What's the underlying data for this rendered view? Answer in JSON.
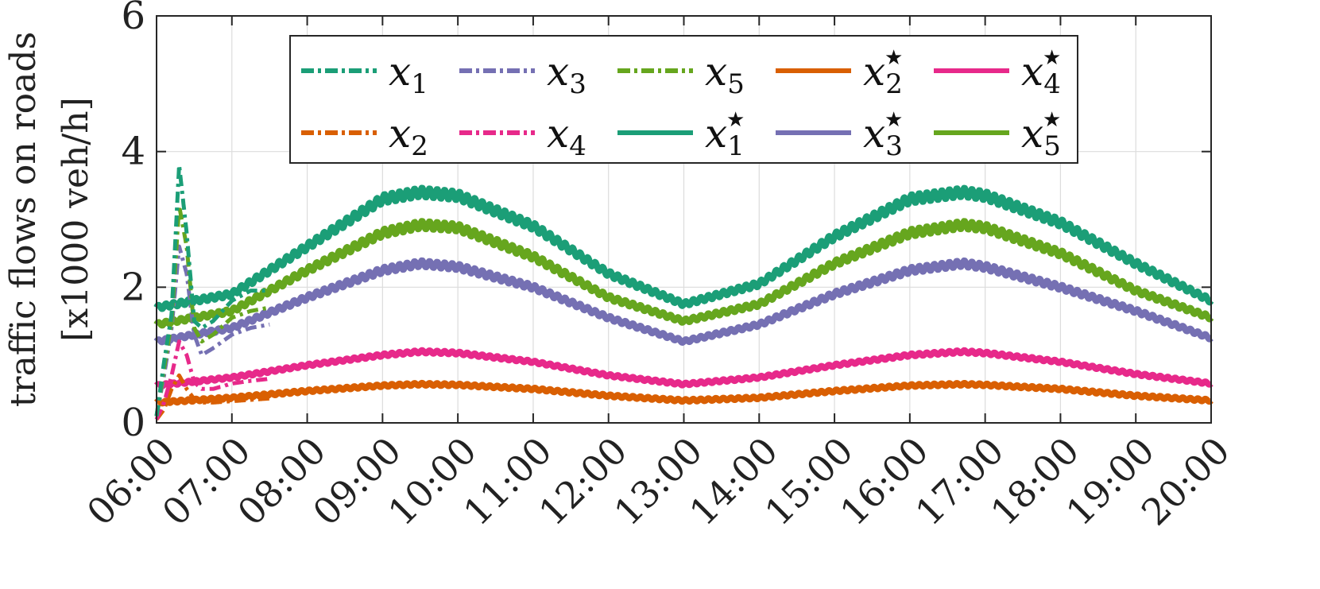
{
  "chart_data": {
    "type": "line",
    "ylabel_line1": "traffic flows on roads",
    "ylabel_line2": "[x1000 veh/h]",
    "x_ticks": [
      "06:00",
      "07:00",
      "08:00",
      "09:00",
      "10:00",
      "11:00",
      "12:00",
      "13:00",
      "14:00",
      "15:00",
      "16:00",
      "17:00",
      "18:00",
      "19:00",
      "20:00"
    ],
    "y_ticks": [
      "0",
      "2",
      "4",
      "6"
    ],
    "xlim": [
      6,
      20
    ],
    "ylim": [
      0,
      6
    ],
    "grid": true,
    "legend_position": "top-center",
    "series": [
      {
        "name": "x",
        "sub": "1",
        "star": false,
        "style": "dashdot",
        "color": "#1b9e77",
        "x": [
          6.0,
          6.1,
          6.2,
          6.3,
          6.4,
          6.5,
          6.6,
          6.75,
          7.0,
          7.25,
          7.5
        ],
        "y": [
          0.1,
          0.9,
          1.6,
          3.8,
          2.8,
          1.5,
          1.4,
          1.5,
          1.8,
          1.95,
          1.95
        ]
      },
      {
        "name": "x",
        "sub": "2",
        "star": false,
        "style": "dashdot",
        "color": "#d95f02",
        "x": [
          6.0,
          6.1,
          6.2,
          6.3,
          6.4,
          6.5,
          6.6,
          6.75,
          7.0,
          7.25,
          7.5
        ],
        "y": [
          0.05,
          0.2,
          0.5,
          0.7,
          0.5,
          0.35,
          0.3,
          0.3,
          0.32,
          0.34,
          0.36
        ]
      },
      {
        "name": "x",
        "sub": "3",
        "star": false,
        "style": "dashdot",
        "color": "#7570b3",
        "x": [
          6.0,
          6.1,
          6.2,
          6.3,
          6.4,
          6.5,
          6.6,
          6.75,
          7.0,
          7.25,
          7.5
        ],
        "y": [
          0.1,
          0.7,
          1.4,
          2.6,
          2.2,
          1.3,
          1.0,
          1.1,
          1.3,
          1.4,
          1.45
        ]
      },
      {
        "name": "x",
        "sub": "4",
        "star": false,
        "style": "dashdot",
        "color": "#e7298a",
        "x": [
          6.0,
          6.1,
          6.2,
          6.3,
          6.4,
          6.5,
          6.6,
          6.75,
          7.0,
          7.25,
          7.5
        ],
        "y": [
          0.05,
          0.3,
          0.7,
          1.2,
          1.0,
          0.6,
          0.5,
          0.5,
          0.58,
          0.62,
          0.65
        ]
      },
      {
        "name": "x",
        "sub": "5",
        "star": false,
        "style": "dashdot",
        "color": "#66a61e",
        "x": [
          6.0,
          6.1,
          6.2,
          6.3,
          6.4,
          6.5,
          6.6,
          6.75,
          7.0,
          7.25,
          7.5
        ],
        "y": [
          0.1,
          0.8,
          1.5,
          3.2,
          2.6,
          1.4,
          1.2,
          1.3,
          1.55,
          1.65,
          1.7
        ]
      },
      {
        "name": "x",
        "sub": "1",
        "star": true,
        "style": "solid",
        "color": "#1b9e77",
        "x": [
          6,
          7,
          8,
          9,
          9.5,
          10,
          11,
          12,
          13,
          14,
          15,
          16,
          16.7,
          17,
          18,
          19,
          20
        ],
        "y": [
          1.7,
          1.9,
          2.6,
          3.3,
          3.4,
          3.35,
          2.9,
          2.2,
          1.75,
          2.05,
          2.75,
          3.3,
          3.4,
          3.35,
          2.95,
          2.35,
          1.8
        ]
      },
      {
        "name": "x",
        "sub": "2",
        "star": true,
        "style": "solid",
        "color": "#d95f02",
        "x": [
          6,
          7,
          8,
          9,
          9.5,
          10,
          11,
          12,
          13,
          14,
          15,
          16,
          16.7,
          17,
          18,
          19,
          20
        ],
        "y": [
          0.3,
          0.37,
          0.47,
          0.55,
          0.57,
          0.56,
          0.5,
          0.4,
          0.33,
          0.37,
          0.47,
          0.55,
          0.57,
          0.56,
          0.5,
          0.4,
          0.33
        ]
      },
      {
        "name": "x",
        "sub": "3",
        "star": true,
        "style": "solid",
        "color": "#7570b3",
        "x": [
          6,
          7,
          8,
          9,
          9.5,
          10,
          11,
          12,
          13,
          14,
          15,
          16,
          16.7,
          17,
          18,
          19,
          20
        ],
        "y": [
          1.2,
          1.4,
          1.85,
          2.25,
          2.35,
          2.3,
          2.0,
          1.55,
          1.2,
          1.45,
          1.9,
          2.25,
          2.35,
          2.3,
          2.0,
          1.65,
          1.25
        ]
      },
      {
        "name": "x",
        "sub": "4",
        "star": true,
        "style": "solid",
        "color": "#e7298a",
        "x": [
          6,
          7,
          8,
          9,
          9.5,
          10,
          11,
          12,
          13,
          14,
          15,
          16,
          16.7,
          17,
          18,
          19,
          20
        ],
        "y": [
          0.55,
          0.67,
          0.85,
          1.0,
          1.05,
          1.03,
          0.9,
          0.7,
          0.57,
          0.67,
          0.85,
          1.0,
          1.05,
          1.03,
          0.9,
          0.72,
          0.58
        ]
      },
      {
        "name": "x",
        "sub": "5",
        "star": true,
        "style": "solid",
        "color": "#66a61e",
        "x": [
          6,
          7,
          8,
          9,
          9.5,
          10,
          11,
          12,
          13,
          14,
          15,
          16,
          16.7,
          17,
          18,
          19,
          20
        ],
        "y": [
          1.45,
          1.65,
          2.25,
          2.8,
          2.92,
          2.88,
          2.45,
          1.85,
          1.5,
          1.75,
          2.35,
          2.8,
          2.92,
          2.88,
          2.5,
          1.95,
          1.55
        ]
      }
    ],
    "legend_order": [
      0,
      2,
      4,
      6,
      8,
      1,
      3,
      5,
      7,
      9
    ]
  }
}
